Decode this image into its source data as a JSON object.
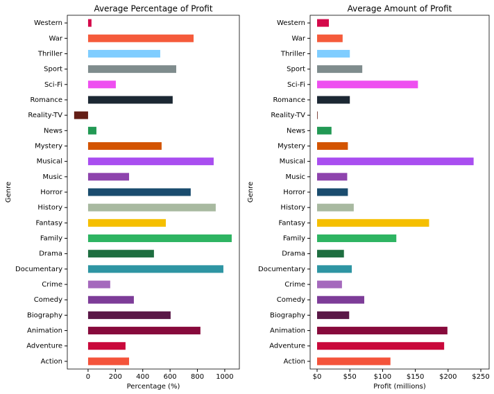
{
  "chart_data": [
    {
      "type": "barh",
      "title": "Average Percentage of Profit",
      "xlabel": "Percentage (%)",
      "ylabel": "Genre",
      "categories": [
        "Action",
        "Adventure",
        "Animation",
        "Biography",
        "Comedy",
        "Crime",
        "Documentary",
        "Drama",
        "Family",
        "Fantasy",
        "History",
        "Horror",
        "Music",
        "Musical",
        "Mystery",
        "News",
        "Reality-TV",
        "Romance",
        "Sci-Fi",
        "Sport",
        "Thriller",
        "War",
        "Western"
      ],
      "values": [
        300,
        274,
        822,
        604,
        335,
        162,
        990,
        482,
        1051,
        569,
        934,
        751,
        300,
        919,
        538,
        61,
        -102,
        619,
        203,
        645,
        528,
        772,
        25
      ],
      "colors": [
        "#f4533a",
        "#c9093b",
        "#870a3c",
        "#5a1847",
        "#7d3c98",
        "#a569bd",
        "#2e95a3",
        "#1e6e40",
        "#2eb462",
        "#f5bf00",
        "#a8b9a0",
        "#1a4c6e",
        "#8e44ad",
        "#a94ef0",
        "#d35400",
        "#229954",
        "#641e16",
        "#1c2833",
        "#ee4ff0",
        "#7f8c8d",
        "#7fcdff",
        "#f55b3b",
        "#d4094a"
      ],
      "xlim": [
        -152,
        1107
      ],
      "xticks": [
        0,
        200,
        400,
        600,
        800,
        1000
      ]
    },
    {
      "type": "barh",
      "title": "Average Amount of Profit",
      "xlabel": "Profit (millions)",
      "ylabel": "Genre",
      "categories": [
        "Action",
        "Adventure",
        "Animation",
        "Biography",
        "Comedy",
        "Crime",
        "Documentary",
        "Drama",
        "Family",
        "Fantasy",
        "History",
        "Horror",
        "Music",
        "Musical",
        "Mystery",
        "News",
        "Reality-TV",
        "Romance",
        "Sci-Fi",
        "Sport",
        "Thriller",
        "War",
        "Western"
      ],
      "values": [
        112,
        194,
        199,
        49,
        72,
        38,
        53,
        41,
        121,
        171,
        56,
        47,
        46,
        239,
        47,
        22,
        0.5,
        50,
        154,
        69,
        50,
        39,
        18
      ],
      "colors": [
        "#f4533a",
        "#c9093b",
        "#870a3c",
        "#5a1847",
        "#7d3c98",
        "#a569bd",
        "#2e95a3",
        "#1e6e40",
        "#2eb462",
        "#f5bf00",
        "#a8b9a0",
        "#1a4c6e",
        "#8e44ad",
        "#a94ef0",
        "#d35400",
        "#229954",
        "#641e16",
        "#1c2833",
        "#ee4ff0",
        "#7f8c8d",
        "#7fcdff",
        "#f55b3b",
        "#d4094a"
      ],
      "xlim": [
        -10.6,
        262.7
      ],
      "xticks": [
        {
          "value": 0,
          "label": "$0"
        },
        {
          "value": 50,
          "label": "$50"
        },
        {
          "value": 100,
          "label": "$100"
        },
        {
          "value": 150,
          "label": "$150"
        },
        {
          "value": 200,
          "label": "$200"
        },
        {
          "value": 250,
          "label": "$250"
        }
      ]
    }
  ]
}
